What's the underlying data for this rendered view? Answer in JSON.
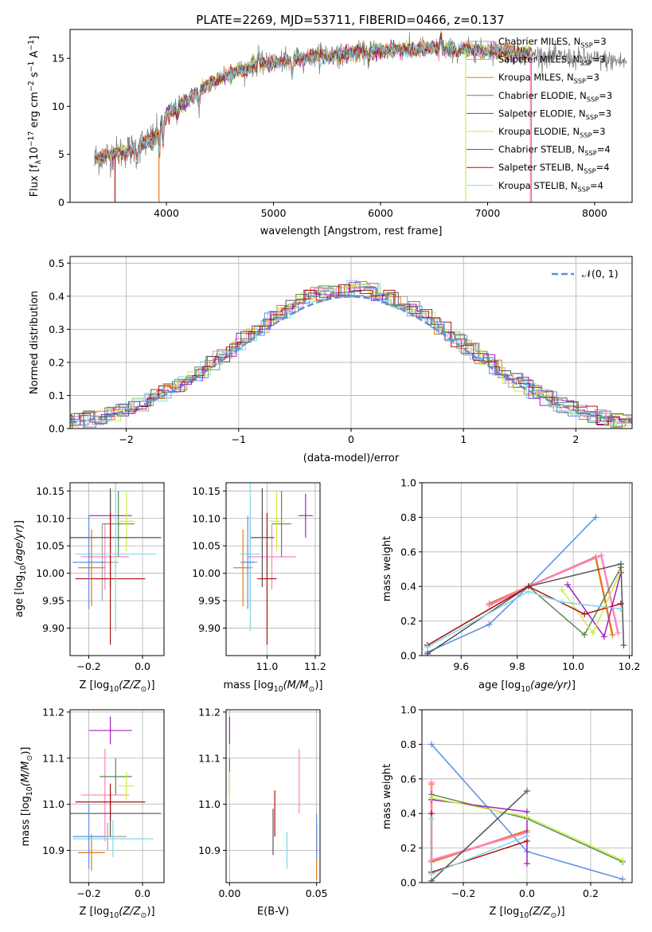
{
  "figure_title": "PLATE=2269, MJD=53711, FIBERID=0466, z=0.137",
  "colors": {
    "Chabrier MILES": "#a0a0a0",
    "Salpeter MILES": "#ff80c0",
    "Kroupa MILES": "#e07b1a",
    "Chabrier ELODIE": "#5a8a50",
    "Salpeter ELODIE": "#a020c0",
    "Kroupa ELODIE": "#ccee44",
    "Chabrier STELIB": "#555555",
    "Salpeter STELIB": "#b01010",
    "Kroupa STELIB": "#80d8e8",
    "MILES blue": "#5b8fe0",
    "N01": "#5b8fd9"
  },
  "chart_data": [
    {
      "id": "spectrum",
      "type": "line",
      "title": "PLATE=2269, MJD=53711, FIBERID=0466, z=0.137",
      "xlabel": "wavelength [Angstrom, rest frame]",
      "ylabel": "Flux [f_λ 10^-17 erg cm^-2 s^-1 A^-1]",
      "xlim": [
        3100,
        8350
      ],
      "ylim": [
        0,
        18
      ],
      "xticks": [
        4000,
        5000,
        6000,
        7000,
        8000
      ],
      "yticks": [
        0,
        5,
        10,
        15
      ],
      "grid": false,
      "legend_loc": "upper right",
      "legend": [
        "Chabrier MILES, N_SSP=3",
        "Salpeter MILES, N_SSP=3",
        "Kroupa MILES, N_SSP=3",
        "Chabrier ELODIE, N_SSP=3",
        "Salpeter ELODIE, N_SSP=3",
        "Kroupa ELODIE, N_SSP=3",
        "Chabrier STELIB, N_SSP=4",
        "Salpeter STELIB, N_SSP=4",
        "Kroupa STELIB, N_SSP=4"
      ],
      "continuum": {
        "x": [
          3330,
          3500,
          3700,
          3900,
          4000,
          4200,
          4400,
          4600,
          4800,
          5000,
          5200,
          5400,
          5600,
          5800,
          6000,
          6200,
          6500,
          6800,
          7000,
          7200,
          7500,
          7800,
          8100,
          8300
        ],
        "y": [
          4.6,
          5.0,
          5.6,
          6.8,
          9.2,
          10.6,
          12.4,
          13.4,
          14.2,
          14.5,
          14.9,
          15.2,
          15.3,
          15.6,
          15.8,
          15.9,
          16.0,
          15.9,
          15.8,
          15.6,
          15.3,
          15.0,
          14.8,
          14.6
        ]
      },
      "model_range": [
        3330,
        7400
      ]
    },
    {
      "id": "residuals",
      "type": "histogram",
      "xlabel": "(data-model)/error",
      "ylabel": "Normed distribution",
      "xlim": [
        -2.5,
        2.5
      ],
      "ylim": [
        0,
        0.52
      ],
      "xticks": [
        -2,
        -1,
        0,
        1,
        2
      ],
      "yticks": [
        0.0,
        0.1,
        0.2,
        0.3,
        0.4,
        0.5
      ],
      "grid": true,
      "legend_loc": "upper right",
      "legend": [
        "N(0,1)"
      ],
      "bin_width": 0.1
    },
    {
      "id": "age_vs_Z",
      "type": "errorbar",
      "xlabel": "Z [log10(Z/Z☉)]",
      "ylabel": "age [log10(age/yr)]",
      "xlim": [
        -0.27,
        0.08
      ],
      "ylim": [
        9.85,
        10.165
      ],
      "xticks": [
        -0.2,
        0.0
      ],
      "yticks": [
        9.9,
        9.95,
        10.0,
        10.05,
        10.1,
        10.15
      ],
      "grid": true,
      "points": [
        {
          "model": "Chabrier MILES",
          "x": -0.15,
          "xerr": 0.06,
          "y": 10.02,
          "yerr": 0.07
        },
        {
          "model": "Salpeter MILES",
          "x": -0.14,
          "xerr": 0.09,
          "y": 10.03,
          "yerr": 0.06
        },
        {
          "model": "Kroupa MILES",
          "x": -0.19,
          "xerr": 0.05,
          "y": 10.01,
          "yerr": 0.07
        },
        {
          "model": "Chabrier ELODIE",
          "x": -0.09,
          "xerr": 0.06,
          "y": 10.09,
          "yerr": 0.06
        },
        {
          "model": "Salpeter ELODIE",
          "x": -0.12,
          "xerr": 0.08,
          "y": 10.105,
          "yerr": 0.04
        },
        {
          "model": "Kroupa ELODIE",
          "x": -0.06,
          "xerr": 0.03,
          "y": 10.095,
          "yerr": 0.055
        },
        {
          "model": "Chabrier STELIB",
          "x": -0.12,
          "xerr": 0.19,
          "y": 10.065,
          "yerr": 0.09
        },
        {
          "model": "Salpeter STELIB",
          "x": -0.12,
          "xerr": 0.13,
          "y": 9.99,
          "yerr": 0.12
        },
        {
          "model": "Kroupa STELIB",
          "x": -0.1,
          "xerr": 0.15,
          "y": 10.035,
          "yerr": 0.14
        },
        {
          "model": "MILES blue",
          "x": -0.2,
          "xerr": 0.06,
          "y": 10.02,
          "yerr": 0.085
        }
      ]
    },
    {
      "id": "age_vs_mass",
      "type": "errorbar",
      "xlabel": "mass [log10(M/M☉)]",
      "ylabel": "",
      "xlim": [
        10.83,
        11.22
      ],
      "ylim": [
        9.85,
        10.165
      ],
      "xticks": [
        10.8,
        11.0,
        11.2
      ],
      "yticks": [
        9.9,
        9.95,
        10.0,
        10.05,
        10.1,
        10.15
      ],
      "grid": true,
      "points": [
        {
          "model": "Chabrier MILES",
          "x": 10.93,
          "xerr": 0.03,
          "y": 10.02,
          "yerr": 0.085
        },
        {
          "model": "Salpeter MILES",
          "x": 11.02,
          "xerr": 0.1,
          "y": 10.03,
          "yerr": 0.06
        },
        {
          "model": "Kroupa MILES",
          "x": 10.9,
          "xerr": 0.04,
          "y": 10.01,
          "yerr": 0.07
        },
        {
          "model": "Chabrier ELODIE",
          "x": 11.06,
          "xerr": 0.04,
          "y": 10.09,
          "yerr": 0.06
        },
        {
          "model": "Salpeter ELODIE",
          "x": 11.16,
          "xerr": 0.03,
          "y": 10.105,
          "yerr": 0.04
        },
        {
          "model": "Kroupa ELODIE",
          "x": 11.04,
          "xerr": 0.03,
          "y": 10.095,
          "yerr": 0.055
        },
        {
          "model": "Chabrier STELIB",
          "x": 10.98,
          "xerr": 0.05,
          "y": 10.065,
          "yerr": 0.09
        },
        {
          "model": "Salpeter STELIB",
          "x": 11.0,
          "xerr": 0.04,
          "y": 9.99,
          "yerr": 0.12
        },
        {
          "model": "Kroupa STELIB",
          "x": 10.93,
          "xerr": 0.04,
          "y": 10.035,
          "yerr": 0.14
        },
        {
          "model": "MILES blue",
          "x": 10.92,
          "xerr": 0.03,
          "y": 10.02,
          "yerr": 0.085
        }
      ]
    },
    {
      "id": "weight_vs_age",
      "type": "line",
      "xlabel": "age [log10(age/yr)]",
      "ylabel": "mass weight",
      "xlim": [
        9.46,
        10.21
      ],
      "ylim": [
        0,
        1
      ],
      "xticks": [
        9.6,
        9.8,
        10.0,
        10.2
      ],
      "yticks": [
        0.0,
        0.2,
        0.4,
        0.6,
        0.8,
        1.0
      ],
      "grid": true,
      "series": [
        {
          "model": "MILES blue",
          "x": [
            9.48,
            9.7,
            9.84,
            10.08
          ],
          "y": [
            0.02,
            0.18,
            0.4,
            0.8
          ]
        },
        {
          "model": "Kroupa MILES",
          "x": [
            9.7,
            9.84,
            10.08,
            10.14
          ],
          "y": [
            0.3,
            0.4,
            0.57,
            0.12
          ]
        },
        {
          "model": "Salpeter MILES",
          "x": [
            9.7,
            9.84,
            10.1,
            10.16
          ],
          "y": [
            0.29,
            0.4,
            0.58,
            0.13
          ]
        },
        {
          "model": "Chabrier ELODIE",
          "x": [
            9.48,
            9.84,
            10.04,
            10.17
          ],
          "y": [
            0.06,
            0.4,
            0.12,
            0.51
          ]
        },
        {
          "model": "Salpeter ELODIE",
          "x": [
            9.98,
            10.11,
            10.17
          ],
          "y": [
            0.41,
            0.11,
            0.48
          ]
        },
        {
          "model": "Kroupa ELODIE",
          "x": [
            9.96,
            10.07,
            10.17
          ],
          "y": [
            0.38,
            0.13,
            0.49
          ]
        },
        {
          "model": "Chabrier STELIB",
          "x": [
            9.48,
            9.84,
            10.17,
            10.18
          ],
          "y": [
            0.01,
            0.4,
            0.53,
            0.06
          ]
        },
        {
          "model": "Salpeter STELIB",
          "x": [
            9.48,
            9.84,
            10.04,
            10.17
          ],
          "y": [
            0.06,
            0.4,
            0.24,
            0.3
          ]
        },
        {
          "model": "Kroupa STELIB",
          "x": [
            9.48,
            9.84,
            9.96,
            10.17
          ],
          "y": [
            0.05,
            0.37,
            0.31,
            0.27
          ]
        }
      ]
    },
    {
      "id": "mass_vs_Z",
      "type": "errorbar",
      "xlabel": "Z [log10(Z/Z☉)]",
      "ylabel": "mass [log10(M/M☉)]",
      "xlim": [
        -0.27,
        0.08
      ],
      "ylim": [
        10.83,
        11.205
      ],
      "xticks": [
        -0.2,
        0.0
      ],
      "yticks": [
        10.9,
        11.0,
        11.1,
        11.2
      ],
      "grid": true,
      "points": [
        {
          "model": "Chabrier MILES",
          "x": -0.13,
          "xerr": 0.07,
          "y": 10.93,
          "yerr": 0.03
        },
        {
          "model": "Salpeter MILES",
          "x": -0.14,
          "xerr": 0.09,
          "y": 11.02,
          "yerr": 0.1
        },
        {
          "model": "Kroupa MILES",
          "x": -0.19,
          "xerr": 0.05,
          "y": 10.895,
          "yerr": 0.04
        },
        {
          "model": "Chabrier ELODIE",
          "x": -0.1,
          "xerr": 0.06,
          "y": 11.06,
          "yerr": 0.04
        },
        {
          "model": "Salpeter ELODIE",
          "x": -0.12,
          "xerr": 0.08,
          "y": 11.16,
          "yerr": 0.03
        },
        {
          "model": "Kroupa ELODIE",
          "x": -0.06,
          "xerr": 0.03,
          "y": 11.04,
          "yerr": 0.03
        },
        {
          "model": "Chabrier STELIB",
          "x": -0.12,
          "xerr": 0.19,
          "y": 10.98,
          "yerr": 0.05
        },
        {
          "model": "Salpeter STELIB",
          "x": -0.12,
          "xerr": 0.13,
          "y": 11.005,
          "yerr": 0.04
        },
        {
          "model": "Kroupa STELIB",
          "x": -0.11,
          "xerr": 0.15,
          "y": 10.925,
          "yerr": 0.04
        },
        {
          "model": "MILES blue",
          "x": -0.2,
          "xerr": 0.06,
          "y": 10.93,
          "yerr": 0.07
        }
      ]
    },
    {
      "id": "mass_vs_ebv",
      "type": "errorbar",
      "xlabel": "E(B-V)",
      "ylabel": "",
      "xlim": [
        -0.002,
        0.052
      ],
      "ylim": [
        10.83,
        11.205
      ],
      "xticks": [
        0.0,
        0.05
      ],
      "yticks": [
        10.9,
        11.0,
        11.1,
        11.2
      ],
      "grid": true,
      "points": [
        {
          "model": "Chabrier MILES",
          "x": 0.05,
          "xerr": 0,
          "y": 10.93,
          "yerr": 0.03
        },
        {
          "model": "Salpeter MILES",
          "x": 0.04,
          "xerr": 0,
          "y": 11.05,
          "yerr": 0.07
        },
        {
          "model": "Kroupa MILES",
          "x": 0.05,
          "xerr": 0,
          "y": 10.895,
          "yerr": 0.06
        },
        {
          "model": "Chabrier ELODIE",
          "x": 0.0,
          "xerr": 0,
          "y": 11.06,
          "yerr": 0.04
        },
        {
          "model": "Salpeter ELODIE",
          "x": 0.0,
          "xerr": 0,
          "y": 11.16,
          "yerr": 0.03
        },
        {
          "model": "Kroupa ELODIE",
          "x": 0.0,
          "xerr": 0,
          "y": 11.04,
          "yerr": 0.03
        },
        {
          "model": "Chabrier STELIB",
          "x": 0.025,
          "xerr": 0,
          "y": 10.94,
          "yerr": 0.05
        },
        {
          "model": "Salpeter STELIB",
          "x": 0.026,
          "xerr": 0,
          "y": 10.98,
          "yerr": 0.05
        },
        {
          "model": "Kroupa STELIB",
          "x": 0.033,
          "xerr": 0,
          "y": 10.9,
          "yerr": 0.04
        },
        {
          "model": "MILES blue",
          "x": 0.05,
          "xerr": 0,
          "y": 10.93,
          "yerr": 0.05
        }
      ]
    },
    {
      "id": "weight_vs_Z",
      "type": "line",
      "xlabel": "Z [log10(Z/Z☉)]",
      "ylabel": "mass weight",
      "xlim": [
        -0.33,
        0.33
      ],
      "ylim": [
        0,
        1
      ],
      "xticks": [
        -0.2,
        0.0,
        0.2
      ],
      "yticks": [
        0.0,
        0.2,
        0.4,
        0.6,
        0.8,
        1.0
      ],
      "grid": true,
      "series": [
        {
          "model": "MILES blue",
          "x": [
            -0.3,
            0.0,
            0.3
          ],
          "y": [
            0.8,
            0.18,
            0.02
          ]
        },
        {
          "model": "Kroupa MILES",
          "x": [
            -0.3,
            -0.3,
            0.0
          ],
          "y": [
            0.57,
            0.12,
            0.3
          ]
        },
        {
          "model": "Salpeter MILES",
          "x": [
            -0.3,
            -0.3,
            0.0
          ],
          "y": [
            0.58,
            0.13,
            0.29
          ]
        },
        {
          "model": "Chabrier ELODIE",
          "x": [
            -0.3,
            0.0,
            0.3
          ],
          "y": [
            0.51,
            0.37,
            0.12
          ]
        },
        {
          "model": "Salpeter ELODIE",
          "x": [
            -0.3,
            0.0,
            0.0
          ],
          "y": [
            0.48,
            0.41,
            0.11
          ]
        },
        {
          "model": "Kroupa ELODIE",
          "x": [
            -0.3,
            0.0,
            0.3
          ],
          "y": [
            0.49,
            0.38,
            0.13
          ]
        },
        {
          "model": "Chabrier STELIB",
          "x": [
            -0.3,
            0.0
          ],
          "y": [
            0.01,
            0.53
          ]
        },
        {
          "model": "Salpeter STELIB",
          "x": [
            -0.3,
            -0.3,
            0.0
          ],
          "y": [
            0.4,
            0.06,
            0.24
          ]
        },
        {
          "model": "Kroupa STELIB",
          "x": [
            -0.3,
            -0.3,
            0.0
          ],
          "y": [
            0.37,
            0.05,
            0.27
          ]
        }
      ]
    }
  ]
}
